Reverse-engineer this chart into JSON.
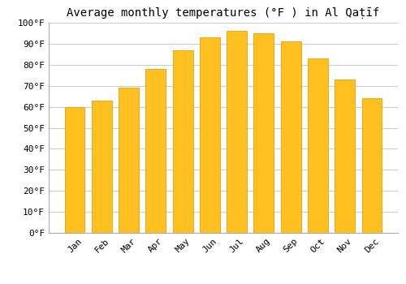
{
  "title": "Average monthly temperatures (°F ) in Al Qaṭīf",
  "months": [
    "Jan",
    "Feb",
    "Mar",
    "Apr",
    "May",
    "Jun",
    "Jul",
    "Aug",
    "Sep",
    "Oct",
    "Nov",
    "Dec"
  ],
  "values": [
    60,
    63,
    69,
    78,
    87,
    93,
    96,
    95,
    91,
    83,
    73,
    64
  ],
  "bar_color": "#FFC020",
  "bar_edge_color": "#E8A000",
  "background_color": "#FFFFFF",
  "grid_color": "#CCCCCC",
  "ylim": [
    0,
    100
  ],
  "yticks": [
    0,
    10,
    20,
    30,
    40,
    50,
    60,
    70,
    80,
    90,
    100
  ],
  "title_fontsize": 10,
  "tick_fontsize": 8
}
